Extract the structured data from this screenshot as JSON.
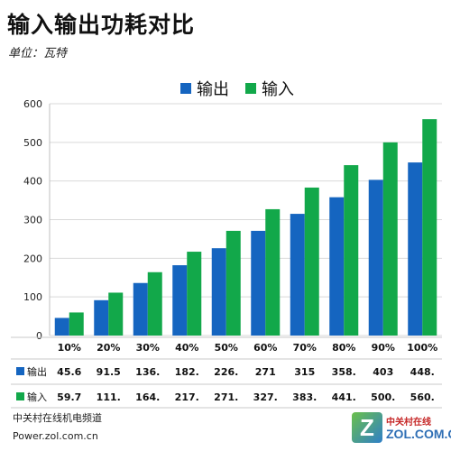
{
  "title": "输入输出功耗对比",
  "subtitle": "单位：瓦特",
  "footer": {
    "line1": "中关村在线机电频道",
    "line2": "Power.zol.com.cn"
  },
  "logo": {
    "mark": "Z",
    "cn": "中关村在线",
    "en": "ZOL.COM.CN"
  },
  "colors": {
    "output": "#1565c0",
    "input": "#12a84a",
    "grid": "#d9d9d9"
  },
  "chart_data": {
    "type": "bar",
    "title": "输入输出功耗对比",
    "subtitle": "单位：瓦特",
    "categories": [
      "10%",
      "20%",
      "30%",
      "40%",
      "50%",
      "60%",
      "70%",
      "80%",
      "90%",
      "100%"
    ],
    "series": [
      {
        "name": "输出",
        "values": [
          45.6,
          91.5,
          136,
          182,
          226,
          271,
          315,
          358,
          403,
          448
        ],
        "labels": [
          "45.6",
          "91.5",
          "136.",
          "182.",
          "226.",
          "271",
          "315",
          "358.",
          "403",
          "448."
        ]
      },
      {
        "name": "输入",
        "values": [
          59.7,
          111,
          164,
          217,
          271,
          327,
          383,
          441,
          500,
          560
        ],
        "labels": [
          "59.7",
          "111.",
          "164.",
          "217.",
          "271.",
          "327.",
          "383.",
          "441.",
          "500.",
          "560."
        ]
      }
    ],
    "ylim": [
      0,
      600
    ],
    "yticks": [
      0,
      100,
      200,
      300,
      400,
      500,
      600
    ],
    "grid": true,
    "legend": "top-center",
    "data_table": true
  }
}
